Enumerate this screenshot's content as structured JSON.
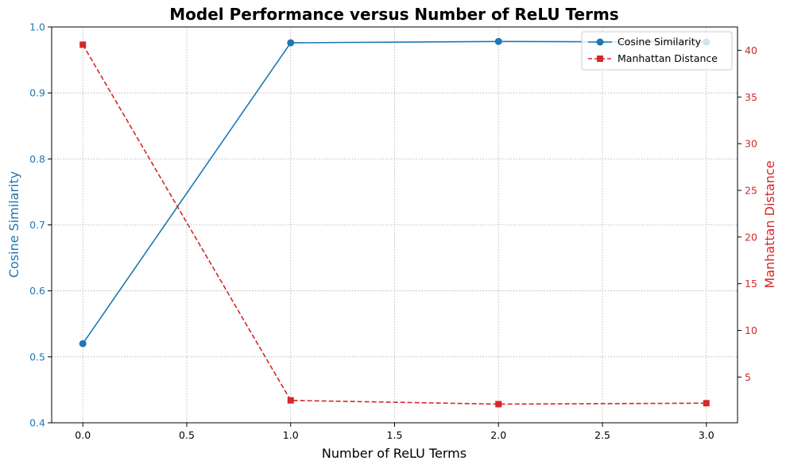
{
  "chart_data": {
    "type": "line",
    "title": "Model Performance versus Number of ReLU Terms",
    "xlabel": "Number of ReLU Terms",
    "ylabel_left": "Cosine Similarity",
    "ylabel_right": "Manhattan Distance",
    "x": [
      0,
      1,
      2,
      3
    ],
    "xlim": [
      -0.15,
      3.15
    ],
    "x_ticks": [
      0.0,
      0.5,
      1.0,
      1.5,
      2.0,
      2.5,
      3.0
    ],
    "x_tick_labels": [
      "0.0",
      "0.5",
      "1.0",
      "1.5",
      "2.0",
      "2.5",
      "3.0"
    ],
    "ylim_left": [
      0.4,
      1.0
    ],
    "y_left_ticks": [
      0.4,
      0.5,
      0.6,
      0.7,
      0.8,
      0.9,
      1.0
    ],
    "y_left_tick_labels": [
      "0.4",
      "0.5",
      "0.6",
      "0.7",
      "0.8",
      "0.9",
      "1.0"
    ],
    "ylim_right": [
      0.1,
      42.5
    ],
    "y_right_ticks": [
      5,
      10,
      15,
      20,
      25,
      30,
      35,
      40
    ],
    "y_right_tick_labels": [
      "5",
      "10",
      "15",
      "20",
      "25",
      "30",
      "35",
      "40"
    ],
    "grid": true,
    "legend_position": "top-right",
    "series": [
      {
        "name": "Cosine Similarity",
        "axis": "left",
        "values": [
          0.52,
          0.976,
          0.978,
          0.977
        ],
        "color": "#1f77b4",
        "marker": "circle",
        "linestyle": "solid"
      },
      {
        "name": "Manhattan Distance",
        "axis": "right",
        "values": [
          40.6,
          2.5,
          2.1,
          2.2
        ],
        "color": "#d62728",
        "marker": "square",
        "linestyle": "dashed"
      }
    ]
  }
}
